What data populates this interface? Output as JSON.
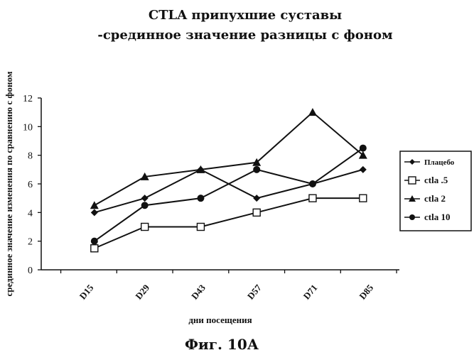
{
  "chart_data": {
    "type": "line",
    "title_line1": "CTLA припухшие суставы",
    "title_line2": "-срединное значение разницы с фоном",
    "xlabel": "дни посещения",
    "ylabel": "срединное значение изменения по сравнению с фоном",
    "categories": [
      "D15",
      "D29",
      "D43",
      "D57",
      "D71",
      "D85"
    ],
    "ylim": [
      0,
      12
    ],
    "yticks": [
      0,
      2,
      4,
      6,
      8,
      10,
      12
    ],
    "grid": false,
    "legend_position": "right",
    "series": [
      {
        "name": "Плацебо",
        "marker": "diamond",
        "points": [
          [
            0.1,
            4
          ],
          [
            1,
            5
          ],
          [
            2,
            7
          ],
          [
            3,
            5
          ],
          [
            4,
            6
          ],
          [
            4.9,
            7
          ]
        ]
      },
      {
        "name": "ctla .5",
        "marker": "square-open",
        "points": [
          [
            0.1,
            1.5
          ],
          [
            1,
            3
          ],
          [
            2,
            3
          ],
          [
            3,
            4
          ],
          [
            4,
            5
          ],
          [
            4.9,
            5
          ]
        ]
      },
      {
        "name": "ctla 2",
        "marker": "triangle",
        "points": [
          [
            0.1,
            4.5
          ],
          [
            1,
            6.5
          ],
          [
            2,
            7
          ],
          [
            3,
            7.5
          ],
          [
            4,
            11
          ],
          [
            4.9,
            8
          ]
        ]
      },
      {
        "name": "ctla 10",
        "marker": "circle",
        "points": [
          [
            0.1,
            2
          ],
          [
            1,
            4.5
          ],
          [
            2,
            5
          ],
          [
            3,
            7
          ],
          [
            4,
            6
          ],
          [
            4.9,
            8.5
          ]
        ]
      }
    ]
  },
  "figure_caption": "Фиг. 10А"
}
